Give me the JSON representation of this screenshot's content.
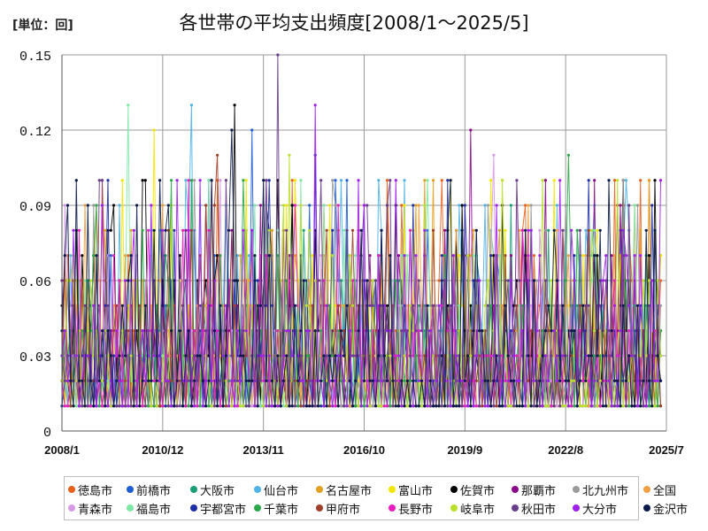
{
  "unit_label": "[単位：回]",
  "chart_data": {
    "type": "line",
    "title": "各世帯の平均支出頻度[2008/1～2025/5]",
    "xlabel": "",
    "ylabel": "",
    "x_range": [
      "2008/1",
      "2025/7"
    ],
    "x_ticks": [
      "2008/1",
      "2010/12",
      "2013/11",
      "2016/10",
      "2019/9",
      "2022/8",
      "2025/7"
    ],
    "y_ticks": [
      "0",
      "0.03",
      "0.06",
      "0.09",
      "0.12",
      "0.15"
    ],
    "ylim": [
      0,
      0.15
    ],
    "grid": true,
    "legend_position": "bottom",
    "series": [
      {
        "name": "徳島市",
        "color": "#e8601c",
        "peak": {
          "date": "2009/3",
          "value": 0.1
        }
      },
      {
        "name": "前橋市",
        "color": "#1f5fd6",
        "peak": {
          "date": "2013/7",
          "value": 0.12
        }
      },
      {
        "name": "大阪市",
        "color": "#1a9e77",
        "peak": {
          "date": "2021/1",
          "value": 0.09
        }
      },
      {
        "name": "仙台市",
        "color": "#4fb3e8",
        "peak": {
          "date": "2011/10",
          "value": 0.13
        }
      },
      {
        "name": "名古屋市",
        "color": "#e6a020",
        "peak": {
          "date": "2018/10",
          "value": 0.1
        }
      },
      {
        "name": "富山市",
        "color": "#f2e600",
        "peak": {
          "date": "2010/9",
          "value": 0.12
        }
      },
      {
        "name": "佐賀市",
        "color": "#000000",
        "peak": {
          "date": "2013/1",
          "value": 0.13
        }
      },
      {
        "name": "那覇市",
        "color": "#8b0a8b",
        "peak": {
          "date": "2019/11",
          "value": 0.12
        }
      },
      {
        "name": "北九州市",
        "color": "#9a9a9a",
        "peak": {
          "date": "2011/11",
          "value": 0.1
        }
      },
      {
        "name": "全国",
        "color": "#f0a040",
        "peak": {
          "date": "2024/8",
          "value": 0.09
        }
      },
      {
        "name": "青森市",
        "color": "#d79be6",
        "peak": {
          "date": "2020/7",
          "value": 0.11
        }
      },
      {
        "name": "福島市",
        "color": "#7ee8a6",
        "peak": {
          "date": "2009/12",
          "value": 0.13
        }
      },
      {
        "name": "宇都宮市",
        "color": "#1f2fa8",
        "peak": {
          "date": "2015/5",
          "value": 0.11
        }
      },
      {
        "name": "千葉市",
        "color": "#2aa84a",
        "peak": {
          "date": "2022/9",
          "value": 0.11
        }
      },
      {
        "name": "甲府市",
        "color": "#a0402a",
        "peak": {
          "date": "2012/7",
          "value": 0.11
        }
      },
      {
        "name": "長野市",
        "color": "#e81ec0",
        "peak": {
          "date": "2011/9",
          "value": 0.1
        }
      },
      {
        "name": "岐阜市",
        "color": "#b8e02a",
        "peak": {
          "date": "2014/8",
          "value": 0.11
        }
      },
      {
        "name": "秋田市",
        "color": "#6a3d8a",
        "peak": {
          "date": "2014/4",
          "value": 0.15
        }
      },
      {
        "name": "大分市",
        "color": "#a020f0",
        "peak": {
          "date": "2015/5",
          "value": 0.13
        }
      },
      {
        "name": "金沢市",
        "color": "#0a1a4a",
        "peak": {
          "date": "2012/12",
          "value": 0.12
        }
      }
    ]
  }
}
